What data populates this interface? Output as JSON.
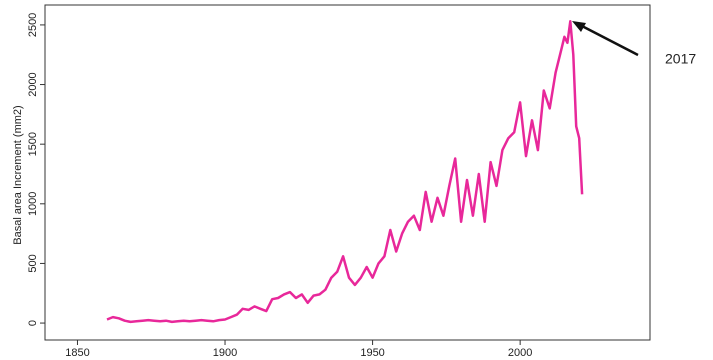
{
  "chart_data": {
    "type": "line",
    "y_label": "Basal area Increment (mm2)",
    "annotation": "2017",
    "x": [
      1860,
      1862,
      1864,
      1866,
      1868,
      1870,
      1872,
      1874,
      1876,
      1878,
      1880,
      1882,
      1884,
      1886,
      1888,
      1890,
      1892,
      1894,
      1896,
      1898,
      1900,
      1902,
      1904,
      1906,
      1908,
      1910,
      1912,
      1914,
      1916,
      1918,
      1920,
      1922,
      1924,
      1926,
      1928,
      1930,
      1932,
      1934,
      1936,
      1938,
      1940,
      1942,
      1944,
      1946,
      1948,
      1950,
      1952,
      1954,
      1956,
      1958,
      1960,
      1962,
      1964,
      1966,
      1968,
      1970,
      1972,
      1974,
      1976,
      1978,
      1980,
      1982,
      1984,
      1986,
      1988,
      1990,
      1992,
      1994,
      1996,
      1998,
      2000,
      2002,
      2004,
      2006,
      2008,
      2010,
      2012,
      2014,
      2015,
      2016,
      2017,
      2018,
      2019,
      2020,
      2021
    ],
    "series": [
      {
        "name": "Basal area increment",
        "color": "#e8289a",
        "values": [
          30,
          50,
          40,
          20,
          10,
          15,
          20,
          25,
          20,
          15,
          20,
          10,
          15,
          20,
          15,
          20,
          25,
          20,
          15,
          25,
          30,
          50,
          70,
          120,
          110,
          140,
          120,
          100,
          200,
          210,
          240,
          260,
          210,
          240,
          170,
          230,
          240,
          280,
          380,
          430,
          560,
          380,
          320,
          380,
          470,
          380,
          500,
          560,
          780,
          600,
          750,
          850,
          900,
          780,
          1100,
          850,
          1050,
          900,
          1150,
          1380,
          850,
          1200,
          900,
          1250,
          850,
          1350,
          1150,
          1450,
          1550,
          1600,
          1850,
          1400,
          1700,
          1450,
          1950,
          1800,
          2100,
          2300,
          2400,
          2350,
          2530,
          2250,
          1650,
          1550,
          1080
        ]
      }
    ],
    "xlim": [
      1839,
      2044
    ],
    "ylim": [
      -142,
      2667
    ],
    "xticks": [
      1850,
      1900,
      1950,
      2000
    ],
    "yticks": [
      0,
      500,
      1000,
      1500,
      2000,
      2500
    ]
  }
}
